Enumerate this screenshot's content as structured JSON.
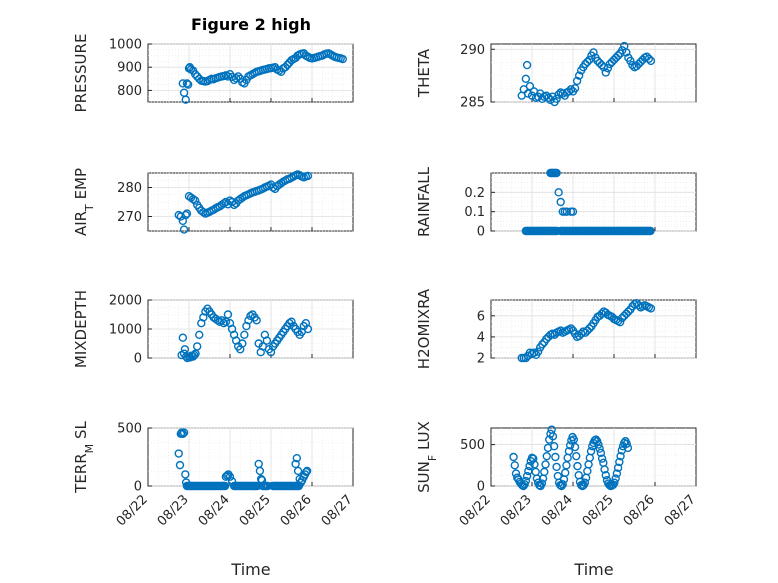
{
  "figure": {
    "title": "Figure 2 high",
    "xlabel": "Time"
  },
  "colors": {
    "marker": "#0072BD",
    "axis": "#262626"
  },
  "xticks": [
    "08/22",
    "08/23",
    "08/24",
    "08/25",
    "08/26",
    "08/27"
  ],
  "chart_data": [
    {
      "type": "scatter",
      "ylabel": "PRESSURE",
      "ylim": [
        750,
        1000
      ],
      "yticks": [
        "800",
        "900",
        "1000"
      ],
      "grid": "major+minor",
      "x_range": [
        "08/22",
        "08/27"
      ],
      "x": [
        0.85,
        0.88,
        0.92,
        0.95,
        0.98,
        1.0,
        1.02,
        1.05,
        1.1,
        1.15,
        1.2,
        1.25,
        1.3,
        1.35,
        1.4,
        1.45,
        1.5,
        1.55,
        1.6,
        1.65,
        1.7,
        1.75,
        1.8,
        1.85,
        1.9,
        1.95,
        2.0,
        2.05,
        2.1,
        2.15,
        2.2,
        2.25,
        2.3,
        2.35,
        2.4,
        2.45,
        2.5,
        2.55,
        2.6,
        2.65,
        2.7,
        2.75,
        2.8,
        2.85,
        2.9,
        2.95,
        3.0,
        3.05,
        3.1,
        3.15,
        3.2,
        3.25,
        3.3,
        3.35,
        3.4,
        3.45,
        3.5,
        3.55,
        3.6,
        3.65,
        3.7,
        3.75,
        3.8,
        3.85,
        3.9,
        3.95,
        4.0,
        4.05,
        4.1,
        4.15,
        4.2,
        4.25,
        4.3,
        4.35,
        4.4,
        4.45,
        4.5,
        4.55,
        4.6,
        4.65,
        4.7,
        4.75
      ],
      "y": [
        830,
        790,
        760,
        830,
        825,
        895,
        900,
        890,
        885,
        870,
        860,
        850,
        842,
        840,
        838,
        840,
        845,
        850,
        848,
        852,
        855,
        858,
        860,
        862,
        865,
        860,
        870,
        858,
        845,
        852,
        860,
        850,
        835,
        830,
        845,
        860,
        865,
        870,
        875,
        880,
        882,
        885,
        888,
        890,
        892,
        895,
        896,
        898,
        900,
        890,
        885,
        880,
        895,
        900,
        910,
        920,
        930,
        935,
        940,
        950,
        955,
        958,
        960,
        950,
        945,
        940,
        938,
        940,
        942,
        945,
        948,
        950,
        955,
        958,
        960,
        955,
        950,
        945,
        942,
        940,
        938,
        935
      ]
    },
    {
      "type": "scatter",
      "ylabel": "THETA",
      "ylim": [
        285,
        290.5
      ],
      "yticks": [
        "285",
        "290"
      ],
      "grid": "major+minor",
      "x_range": [
        "08/22",
        "08/27"
      ],
      "x": [
        0.75,
        0.8,
        0.85,
        0.88,
        0.9,
        0.95,
        1.0,
        1.05,
        1.1,
        1.15,
        1.2,
        1.25,
        1.3,
        1.35,
        1.4,
        1.45,
        1.5,
        1.55,
        1.6,
        1.65,
        1.7,
        1.75,
        1.8,
        1.85,
        1.9,
        1.95,
        2.0,
        2.05,
        2.1,
        2.15,
        2.2,
        2.25,
        2.3,
        2.35,
        2.4,
        2.45,
        2.5,
        2.55,
        2.6,
        2.65,
        2.7,
        2.75,
        2.8,
        2.85,
        2.9,
        2.95,
        3.0,
        3.05,
        3.1,
        3.15,
        3.2,
        3.25,
        3.3,
        3.35,
        3.4,
        3.45,
        3.5,
        3.55,
        3.6,
        3.65,
        3.7,
        3.75,
        3.8,
        3.85,
        3.9
      ],
      "y": [
        285.6,
        286.2,
        287.2,
        288.5,
        285.8,
        286.5,
        285.6,
        286.0,
        285.4,
        285.5,
        285.8,
        285.3,
        285.5,
        285.6,
        285.4,
        285.2,
        285.5,
        285.0,
        285.3,
        285.7,
        285.9,
        285.8,
        285.6,
        285.9,
        286.0,
        286.2,
        286.0,
        286.3,
        287.0,
        287.5,
        288.0,
        288.3,
        288.6,
        288.8,
        289.0,
        289.4,
        289.7,
        289.2,
        288.9,
        288.7,
        288.5,
        288.3,
        287.8,
        288.2,
        288.6,
        288.8,
        289.0,
        289.2,
        289.4,
        289.6,
        289.9,
        290.3,
        289.7,
        289.2,
        288.9,
        288.5,
        288.3,
        288.4,
        288.6,
        288.8,
        289.0,
        289.2,
        289.3,
        289.1,
        288.9
      ]
    },
    {
      "type": "scatter",
      "ylabel": "AIR_T EMP",
      "ylim": [
        265,
        285
      ],
      "yticks": [
        "270",
        "280"
      ],
      "grid": "major+minor",
      "x_range": [
        "08/22",
        "08/27"
      ],
      "x": [
        0.75,
        0.8,
        0.85,
        0.88,
        0.92,
        0.95,
        1.0,
        1.05,
        1.1,
        1.15,
        1.2,
        1.25,
        1.3,
        1.35,
        1.4,
        1.45,
        1.5,
        1.55,
        1.6,
        1.65,
        1.7,
        1.75,
        1.8,
        1.85,
        1.9,
        1.95,
        2.0,
        2.05,
        2.1,
        2.15,
        2.2,
        2.25,
        2.3,
        2.35,
        2.4,
        2.45,
        2.5,
        2.55,
        2.6,
        2.65,
        2.7,
        2.75,
        2.8,
        2.85,
        2.9,
        2.95,
        3.0,
        3.05,
        3.1,
        3.15,
        3.2,
        3.25,
        3.3,
        3.35,
        3.4,
        3.45,
        3.5,
        3.55,
        3.6,
        3.65,
        3.7,
        3.75,
        3.8,
        3.85,
        3.9
      ],
      "y": [
        270.5,
        270.0,
        268.5,
        265.5,
        270.5,
        271.0,
        277.0,
        276.5,
        276.0,
        275.5,
        274.0,
        273.0,
        272.0,
        271.5,
        271.0,
        271.3,
        271.6,
        272.0,
        272.3,
        272.8,
        273.2,
        273.5,
        274.0,
        274.5,
        275.0,
        274.2,
        275.5,
        275.0,
        274.0,
        274.5,
        275.5,
        276.0,
        276.5,
        277.0,
        277.3,
        277.6,
        278.0,
        278.3,
        278.5,
        278.8,
        279.0,
        279.3,
        279.6,
        280.0,
        280.3,
        280.6,
        281.0,
        280.0,
        279.5,
        280.5,
        281.0,
        281.5,
        282.0,
        282.4,
        282.8,
        283.0,
        283.4,
        283.8,
        284.2,
        284.5,
        284.2,
        283.8,
        283.5,
        283.8,
        284.0
      ]
    },
    {
      "type": "scatter",
      "ylabel": "RAINFALL",
      "ylim": [
        0,
        0.3
      ],
      "yticks": [
        "0",
        "0.1",
        "0.2"
      ],
      "grid": "major+minor",
      "x_range": [
        "08/22",
        "08/27"
      ],
      "zero_x": [
        0.85,
        0.88,
        0.91,
        0.94,
        0.97,
        1.0,
        1.03,
        1.06,
        1.09,
        1.12,
        1.15,
        1.18,
        1.21,
        1.24,
        1.27,
        1.3,
        1.33,
        1.36,
        1.39,
        1.42,
        1.45,
        1.48,
        1.51,
        1.54,
        1.57,
        1.6,
        1.7,
        1.73,
        1.76,
        1.79,
        1.82,
        1.85,
        1.88,
        1.91,
        1.94,
        1.97,
        2.0,
        2.03,
        2.06,
        2.09,
        2.12,
        2.15,
        2.18,
        2.21,
        2.24,
        2.27,
        2.3,
        2.33,
        2.36,
        2.39,
        2.42,
        2.45,
        2.48,
        2.51,
        2.54,
        2.57,
        2.6,
        2.63,
        2.66,
        2.69,
        2.72,
        2.75,
        2.78,
        2.81,
        2.84,
        2.87,
        2.9,
        2.93,
        2.96,
        2.99,
        3.02,
        3.05,
        3.08,
        3.11,
        3.14,
        3.17,
        3.2,
        3.23,
        3.26,
        3.29,
        3.32,
        3.35,
        3.38,
        3.41,
        3.44,
        3.47,
        3.5,
        3.53,
        3.56,
        3.59,
        3.62,
        3.65,
        3.68,
        3.71,
        3.74,
        3.77,
        3.8,
        3.83,
        3.86,
        3.89
      ],
      "nonzero_x": [
        1.45,
        1.48,
        1.5,
        1.52,
        1.55,
        1.58,
        1.6,
        1.65,
        1.7,
        1.75,
        1.8,
        1.85,
        1.95,
        2.0
      ],
      "nonzero_y": [
        0.3,
        0.3,
        0.3,
        0.3,
        0.3,
        0.3,
        0.3,
        0.2,
        0.15,
        0.1,
        0.1,
        0.1,
        0.1,
        0.1
      ]
    },
    {
      "type": "scatter",
      "ylabel": "MIXDEPTH",
      "ylim": [
        0,
        2000
      ],
      "yticks": [
        "0",
        "1000",
        "2000"
      ],
      "grid": "major+minor",
      "x_range": [
        "08/22",
        "08/27"
      ],
      "x": [
        0.82,
        0.85,
        0.88,
        0.9,
        0.93,
        0.96,
        1.0,
        1.03,
        1.06,
        1.1,
        1.13,
        1.16,
        1.2,
        1.25,
        1.3,
        1.35,
        1.4,
        1.45,
        1.5,
        1.55,
        1.6,
        1.65,
        1.7,
        1.75,
        1.8,
        1.85,
        1.9,
        1.95,
        2.0,
        2.05,
        2.1,
        2.15,
        2.2,
        2.25,
        2.3,
        2.35,
        2.4,
        2.45,
        2.5,
        2.55,
        2.6,
        2.65,
        2.7,
        2.75,
        2.8,
        2.85,
        2.9,
        2.95,
        3.0,
        3.05,
        3.1,
        3.15,
        3.2,
        3.25,
        3.3,
        3.35,
        3.4,
        3.45,
        3.5,
        3.55,
        3.6,
        3.65,
        3.7,
        3.75,
        3.8,
        3.85,
        3.9
      ],
      "y": [
        100,
        700,
        150,
        300,
        50,
        0,
        50,
        20,
        80,
        50,
        100,
        150,
        400,
        800,
        1200,
        1400,
        1600,
        1700,
        1600,
        1500,
        1400,
        1350,
        1300,
        1250,
        1300,
        1200,
        1250,
        1500,
        1200,
        1000,
        800,
        600,
        400,
        300,
        500,
        800,
        1100,
        1300,
        1450,
        1500,
        1400,
        1300,
        500,
        200,
        400,
        800,
        600,
        300,
        200,
        400,
        500,
        600,
        700,
        800,
        900,
        1000,
        1100,
        1200,
        1250,
        1100,
        1000,
        900,
        800,
        900,
        1100,
        1200,
        1000
      ]
    },
    {
      "type": "scatter",
      "ylabel": "H2OMIXRA",
      "ylim": [
        2,
        7.5
      ],
      "yticks": [
        "2",
        "4",
        "6"
      ],
      "grid": "major+minor",
      "x_range": [
        "08/22",
        "08/27"
      ],
      "x": [
        0.75,
        0.8,
        0.85,
        0.9,
        0.95,
        1.0,
        1.05,
        1.1,
        1.15,
        1.2,
        1.25,
        1.3,
        1.35,
        1.4,
        1.45,
        1.5,
        1.55,
        1.6,
        1.65,
        1.7,
        1.75,
        1.8,
        1.85,
        1.9,
        1.95,
        2.0,
        2.05,
        2.1,
        2.15,
        2.2,
        2.25,
        2.3,
        2.35,
        2.4,
        2.45,
        2.5,
        2.55,
        2.6,
        2.65,
        2.7,
        2.75,
        2.8,
        2.85,
        2.9,
        2.95,
        3.0,
        3.05,
        3.1,
        3.15,
        3.2,
        3.25,
        3.3,
        3.35,
        3.4,
        3.45,
        3.5,
        3.55,
        3.6,
        3.65,
        3.7,
        3.75,
        3.8,
        3.85,
        3.9
      ],
      "y": [
        2.0,
        2.0,
        2.0,
        2.2,
        2.5,
        2.4,
        2.5,
        2.3,
        2.6,
        3.0,
        3.3,
        3.5,
        3.8,
        4.0,
        4.2,
        4.3,
        4.2,
        4.4,
        4.5,
        4.6,
        4.4,
        4.5,
        4.6,
        4.7,
        4.8,
        4.6,
        4.3,
        4.0,
        4.1,
        4.3,
        4.5,
        4.4,
        4.6,
        4.8,
        5.0,
        5.3,
        5.6,
        5.9,
        6.0,
        6.2,
        6.4,
        6.3,
        6.1,
        6.0,
        5.9,
        5.7,
        5.6,
        5.5,
        5.4,
        5.8,
        6.0,
        6.2,
        6.4,
        6.6,
        6.9,
        7.1,
        7.2,
        7.0,
        6.8,
        6.9,
        7.0,
        6.9,
        6.8,
        6.7
      ]
    },
    {
      "type": "scatter",
      "ylabel": "TERR_M SL",
      "ylim": [
        0,
        500
      ],
      "yticks": [
        "0",
        "500"
      ],
      "grid": "major+minor",
      "x_range": [
        "08/22",
        "08/27"
      ],
      "zero_x": [
        0.95,
        0.98,
        1.01,
        1.04,
        1.07,
        1.1,
        1.13,
        1.16,
        1.19,
        1.22,
        1.25,
        1.28,
        1.31,
        1.34,
        1.37,
        1.4,
        1.43,
        1.46,
        1.49,
        1.52,
        1.55,
        1.58,
        1.61,
        1.64,
        1.67,
        1.7,
        1.73,
        1.76,
        1.79,
        1.82,
        1.85,
        1.88,
        2.1,
        2.13,
        2.16,
        2.19,
        2.22,
        2.25,
        2.28,
        2.31,
        2.34,
        2.37,
        2.4,
        2.43,
        2.46,
        2.49,
        2.52,
        2.55,
        2.58,
        2.61,
        2.64,
        2.67,
        2.8,
        2.83,
        2.86,
        2.89,
        2.92,
        3.05,
        3.08,
        3.11,
        3.14,
        3.17,
        3.2,
        3.23,
        3.26,
        3.29,
        3.32,
        3.35,
        3.38,
        3.41,
        3.44,
        3.47,
        3.5,
        3.53,
        3.56,
        3.59,
        3.62,
        3.65,
        3.68
      ],
      "x": [
        0.75,
        0.78,
        0.8,
        0.82,
        0.85,
        0.88,
        0.91,
        0.93,
        1.9,
        1.93,
        1.96,
        2.0,
        2.05,
        2.7,
        2.73,
        2.76,
        2.78,
        3.6,
        3.63,
        3.66,
        3.7,
        3.73,
        3.76,
        3.8,
        3.83,
        3.86,
        3.88
      ],
      "y": [
        280,
        180,
        450,
        460,
        450,
        460,
        100,
        30,
        80,
        90,
        100,
        80,
        40,
        190,
        130,
        60,
        50,
        190,
        240,
        130,
        60,
        30,
        50,
        80,
        100,
        120,
        130
      ]
    },
    {
      "type": "scatter",
      "ylabel": "SUN_F LUX",
      "ylim": [
        0,
        700
      ],
      "yticks": [
        "0",
        "500"
      ],
      "grid": "major+minor",
      "x_range": [
        "08/22",
        "08/27"
      ],
      "x": [
        0.55,
        0.58,
        0.61,
        0.64,
        0.67,
        0.7,
        0.73,
        0.76,
        0.79,
        0.82,
        0.85,
        0.88,
        0.91,
        0.94,
        0.97,
        1.0,
        1.03,
        1.06,
        1.09,
        1.12,
        1.15,
        1.18,
        1.21,
        1.24,
        1.27,
        1.3,
        1.33,
        1.36,
        1.39,
        1.42,
        1.45,
        1.48,
        1.51,
        1.54,
        1.57,
        1.6,
        1.63,
        1.66,
        1.69,
        1.72,
        1.75,
        1.78,
        1.81,
        1.84,
        1.87,
        1.9,
        1.93,
        1.96,
        1.99,
        2.02,
        2.05,
        2.08,
        2.11,
        2.14,
        2.17,
        2.2,
        2.23,
        2.26,
        2.29,
        2.32,
        2.35,
        2.38,
        2.41,
        2.44,
        2.47,
        2.5,
        2.53,
        2.56,
        2.59,
        2.62,
        2.65,
        2.68,
        2.71,
        2.74,
        2.77,
        2.8,
        2.83,
        2.86,
        2.89,
        2.92,
        2.95,
        2.98,
        3.01,
        3.04,
        3.07,
        3.1,
        3.13,
        3.16,
        3.19,
        3.22,
        3.25,
        3.28,
        3.31,
        3.34
      ],
      "y": [
        350,
        250,
        150,
        100,
        80,
        50,
        30,
        10,
        0,
        20,
        60,
        120,
        180,
        240,
        300,
        340,
        330,
        260,
        170,
        90,
        40,
        10,
        0,
        30,
        90,
        170,
        260,
        360,
        460,
        560,
        630,
        680,
        600,
        480,
        350,
        230,
        120,
        40,
        10,
        0,
        20,
        80,
        160,
        250,
        340,
        420,
        490,
        550,
        590,
        560,
        470,
        360,
        240,
        130,
        50,
        10,
        0,
        10,
        40,
        100,
        180,
        260,
        340,
        420,
        480,
        520,
        550,
        560,
        540,
        500,
        450,
        400,
        330,
        280,
        200,
        130,
        70,
        30,
        10,
        0,
        5,
        15,
        40,
        90,
        150,
        220,
        290,
        360,
        430,
        480,
        520,
        540,
        510,
        460
      ]
    }
  ]
}
